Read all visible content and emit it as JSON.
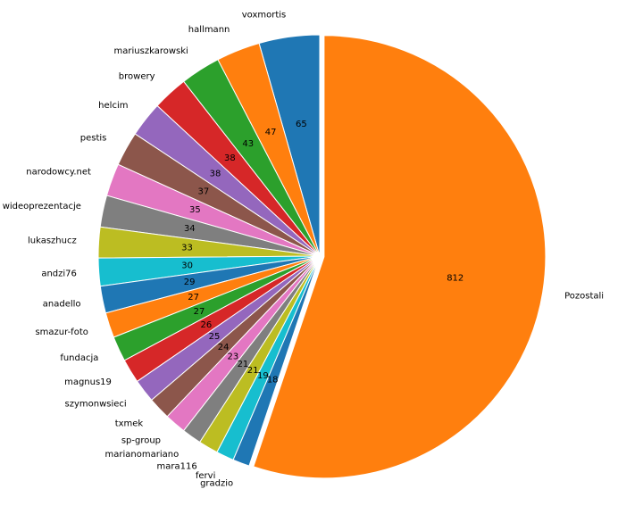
{
  "chart_data": {
    "type": "pie",
    "title": "",
    "startangle": 90,
    "direction": "counterclockwise",
    "labels": [
      "voxmortis",
      "hallmann",
      "mariuszkarowski",
      "browery",
      "helcim",
      "pestis",
      "narodowcy.net",
      "wideoprezentacje",
      "lukaszhucz",
      "andzi76",
      "anadello",
      "smazur-foto",
      "fundacja",
      "magnus19",
      "szymonwsieci",
      "txmek",
      "sp-group",
      "marianomariano",
      "mara116",
      "fervi",
      "gradzio",
      "Pozostali"
    ],
    "values": [
      65,
      47,
      43,
      38,
      38,
      37,
      35,
      34,
      33,
      30,
      29,
      27,
      27,
      26,
      25,
      24,
      23,
      21,
      21,
      19,
      18,
      812
    ],
    "value_labels": [
      "65",
      "47",
      "43",
      "38",
      "38",
      "37",
      "35",
      "34",
      "33",
      "30",
      "29",
      "27",
      "27",
      "26",
      "25",
      "24",
      "23",
      "21",
      "21",
      "19",
      "18",
      "812"
    ],
    "explode": [
      0,
      0,
      0,
      0,
      0,
      0,
      0,
      0,
      0,
      0,
      0,
      0,
      0,
      0,
      0,
      0,
      0,
      0,
      0,
      0,
      0,
      0.02
    ],
    "colors": [
      "#1f77b4",
      "#ff7f0e",
      "#2ca02c",
      "#d62728",
      "#9467bd",
      "#8c564b",
      "#e377c2",
      "#7f7f7f",
      "#bcbd22",
      "#17becf",
      "#1f77b4",
      "#ff7f0e",
      "#2ca02c",
      "#d62728",
      "#9467bd",
      "#8c564b",
      "#e377c2",
      "#7f7f7f",
      "#bcbd22",
      "#17becf",
      "#1f77b4",
      "#ff7f0e"
    ]
  }
}
